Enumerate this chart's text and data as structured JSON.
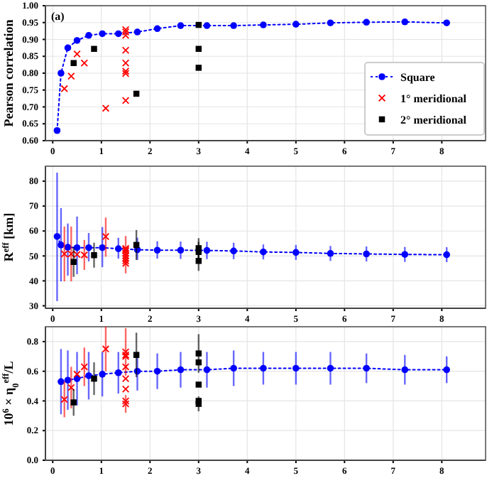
{
  "chart_data": [
    {
      "type": "line",
      "ylabel": "Pearson correlation",
      "annotations": [
        "(a)"
      ],
      "xlim": [
        -0.15,
        8.9
      ],
      "xticks": [
        0,
        1,
        2,
        3,
        4,
        5,
        6,
        7,
        8
      ],
      "ylim": [
        0.6,
        1.0
      ],
      "yticks": [
        {
          "value": 0.6,
          "label": "0.60"
        },
        {
          "value": 0.65,
          "label": "0.65"
        },
        {
          "value": 0.7,
          "label": "0.70"
        },
        {
          "value": 0.75,
          "label": "0.75"
        },
        {
          "value": 0.8,
          "label": "0.80"
        },
        {
          "value": 0.85,
          "label": "0.85"
        },
        {
          "value": 0.9,
          "label": "0.90"
        },
        {
          "value": 0.95,
          "label": "0.95"
        },
        {
          "value": 1.0,
          "label": "1.00"
        }
      ],
      "grid": true,
      "legend": "bottom right",
      "line_style": "dotted",
      "series": [
        {
          "name": "Square",
          "marker": "circle",
          "color": "#0000ff",
          "x": [
            0.09,
            0.17,
            0.31,
            0.5,
            0.74,
            1.02,
            1.35,
            1.74,
            2.15,
            2.63,
            3.17,
            3.72,
            4.33,
            5.0,
            5.71,
            6.45,
            7.24,
            8.1
          ],
          "values": [
            0.63,
            0.8,
            0.875,
            0.897,
            0.912,
            0.917,
            0.917,
            0.922,
            0.932,
            0.941,
            0.941,
            0.941,
            0.943,
            0.945,
            0.949,
            0.951,
            0.952,
            0.949
          ]
        },
        {
          "name": "1° meridional",
          "type": "scatter",
          "marker": "cross",
          "color": "#ff0000",
          "x": [
            0.24,
            0.38,
            0.5,
            0.65,
            1.09,
            1.5,
            1.5,
            1.5,
            1.5,
            1.5,
            1.5,
            1.5,
            1.5
          ],
          "values": [
            0.754,
            0.791,
            0.857,
            0.83,
            0.696,
            0.929,
            0.922,
            0.912,
            0.868,
            0.83,
            0.806,
            0.799,
            0.719
          ]
        },
        {
          "name": "2° meridional",
          "type": "scatter",
          "marker": "square",
          "color": "#000000",
          "x": [
            0.43,
            0.85,
            1.72,
            3.0,
            3.0,
            3.0
          ],
          "values": [
            0.83,
            0.872,
            0.739,
            0.943,
            0.872,
            0.816
          ]
        }
      ]
    },
    {
      "type": "line",
      "ylabel": "R$^{eff}$ [km]",
      "xlim": [
        -0.15,
        8.9
      ],
      "xticks": [
        0,
        1,
        2,
        3,
        4,
        5,
        6,
        7,
        8
      ],
      "ylim": [
        29,
        86
      ],
      "yticks": [
        30,
        40,
        50,
        60,
        70,
        80
      ],
      "grid": true,
      "line_style": "dotted",
      "series": [
        {
          "marker": "circle",
          "color": "#0000ff",
          "x": [
            0.09,
            0.17,
            0.31,
            0.5,
            0.74,
            1.02,
            1.35,
            1.74,
            2.15,
            2.63,
            3.17,
            3.72,
            4.33,
            5.0,
            5.71,
            6.45,
            7.24,
            8.1
          ],
          "values": [
            57.8,
            54.4,
            53.5,
            53.3,
            53.3,
            53.3,
            52.9,
            52.5,
            52.3,
            52.3,
            52.2,
            52.0,
            51.6,
            51.4,
            51.0,
            50.8,
            50.6,
            50.5
          ],
          "errors": [
            [
              31.9,
              83.4
            ],
            [
              39.8,
              69.2
            ],
            [
              42.1,
              63
            ],
            [
              42.7,
              65.8
            ],
            [
              47.8,
              59.2
            ],
            [
              45.5,
              61.6
            ],
            [
              48.9,
              57.3
            ],
            [
              48.4,
              57.3
            ],
            [
              48.9,
              55.9
            ],
            [
              48.8,
              55.8
            ],
            [
              48.7,
              55.7
            ],
            [
              48.7,
              55.3
            ],
            [
              48.6,
              54.6
            ],
            [
              48.4,
              54.4
            ],
            [
              48,
              54
            ],
            [
              47.8,
              53.8
            ],
            [
              47.6,
              53.6
            ],
            [
              47.5,
              53.5
            ]
          ]
        },
        {
          "type": "scatter",
          "marker": "cross",
          "color": "#ff0000",
          "x": [
            0.24,
            0.38,
            0.5,
            0.65,
            1.09,
            1.5,
            1.5,
            1.5,
            1.5,
            1.5,
            1.5,
            1.5,
            1.5
          ],
          "values": [
            50.8,
            50.8,
            50.6,
            50.4,
            57.8,
            53,
            52.5,
            52,
            51,
            50,
            49,
            48,
            47
          ],
          "errors": [
            11,
            11,
            null,
            6,
            [
              49.7,
              65.4
            ],
            5,
            null,
            null,
            null,
            null,
            null,
            null,
            4
          ]
        },
        {
          "type": "scatter",
          "marker": "square",
          "color": "#000000",
          "x": [
            0.43,
            0.85,
            1.72,
            3.0,
            3.0,
            3.0
          ],
          "values": [
            47.6,
            50.3,
            54.4,
            53.1,
            51.6,
            48.0
          ],
          "errors": [
            6,
            5,
            6,
            4,
            4,
            4
          ]
        }
      ]
    },
    {
      "type": "line",
      "ylabel": "10$^{6}$ × η$_{0}$$^{eff}$/L",
      "xlim": [
        -0.15,
        8.9
      ],
      "xticks": [
        0,
        1,
        2,
        3,
        4,
        5,
        6,
        7,
        8
      ],
      "ylim": [
        0,
        0.9
      ],
      "yticks": [
        {
          "value": 0,
          "label": "0.0"
        },
        0.2,
        0.4,
        0.6,
        0.8
      ],
      "grid": true,
      "line_style": "dotted",
      "series": [
        {
          "marker": "circle",
          "color": "#0000ff",
          "x": [
            0.17,
            0.31,
            0.5,
            0.74,
            1.02,
            1.35,
            1.74,
            2.15,
            2.63,
            3.17,
            3.72,
            4.33,
            5.0,
            5.71,
            6.45,
            7.24,
            8.1
          ],
          "values": [
            0.53,
            0.54,
            0.55,
            0.57,
            0.58,
            0.59,
            0.6,
            0.6,
            0.61,
            0.61,
            0.62,
            0.62,
            0.62,
            0.62,
            0.62,
            0.61,
            0.61
          ],
          "errors": [
            0.22,
            0.2,
            0.18,
            0.16,
            0.15,
            0.14,
            0.13,
            0.12,
            0.12,
            0.12,
            0.12,
            0.11,
            0.11,
            0.11,
            0.1,
            0.1,
            0.09
          ]
        },
        {
          "type": "scatter",
          "marker": "cross",
          "color": "#ff0000",
          "x": [
            0.24,
            0.38,
            0.5,
            0.65,
            1.09,
            1.5,
            1.5,
            1.5,
            1.5,
            1.5,
            1.5,
            1.5,
            1.5
          ],
          "values": [
            0.41,
            0.49,
            0.58,
            0.63,
            0.75,
            0.73,
            0.71,
            0.7,
            0.63,
            0.55,
            0.48,
            0.4,
            0.38
          ],
          "errors": [
            0.12,
            0.14,
            null,
            0.13,
            0.15,
            0.16,
            null,
            null,
            null,
            null,
            null,
            null,
            0.06
          ]
        },
        {
          "type": "scatter",
          "marker": "square",
          "color": "#000000",
          "x": [
            0.43,
            0.85,
            1.72,
            3.0,
            3.0,
            3.0,
            3.0,
            3.0
          ],
          "values": [
            0.39,
            0.55,
            0.71,
            0.72,
            0.66,
            0.51,
            0.4,
            0.38
          ],
          "errors": [
            0.09,
            0.11,
            0.15,
            0.13,
            null,
            null,
            null,
            0.05
          ]
        }
      ]
    }
  ]
}
